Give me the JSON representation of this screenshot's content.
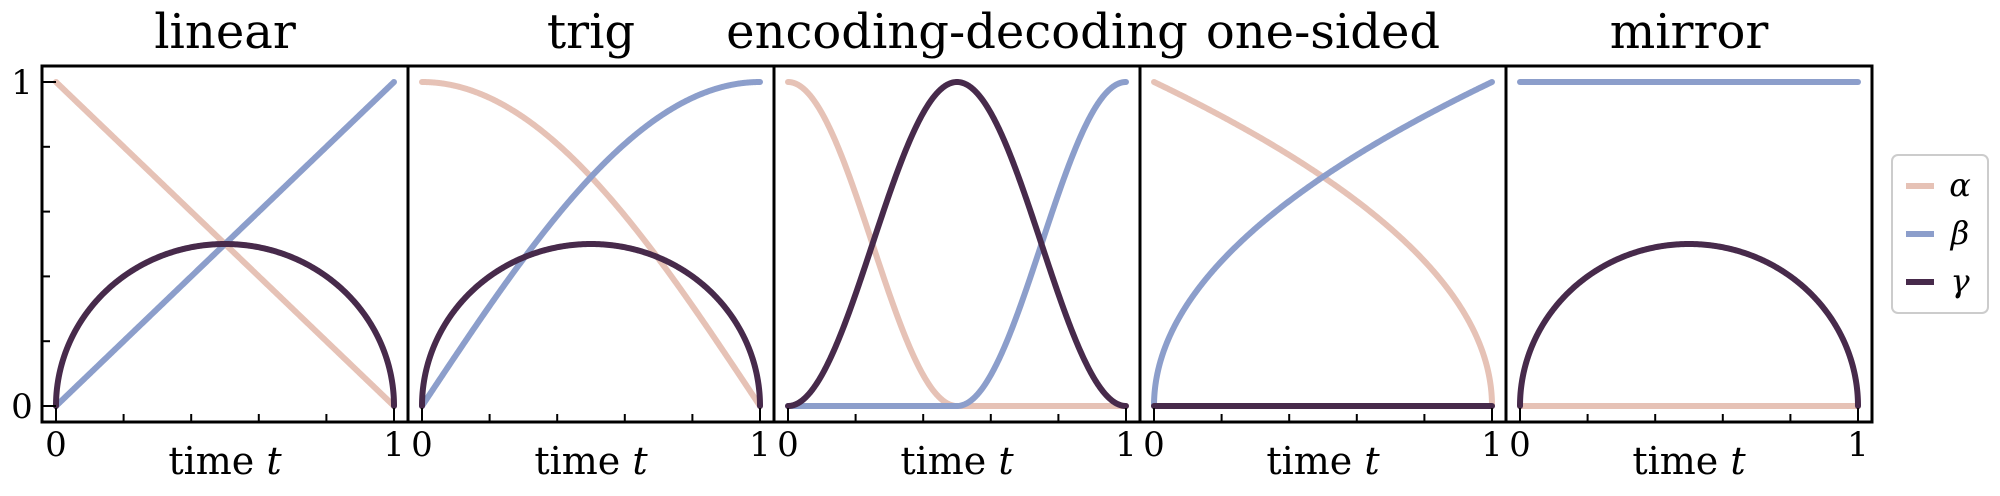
{
  "chart_data": {
    "type": "line",
    "layout": "5 panels side by side with shared legend",
    "x_range": [
      0,
      1
    ],
    "y_range": [
      0,
      1
    ],
    "x_ticks": [
      "0",
      "1"
    ],
    "y_ticks": [
      "0",
      "1"
    ],
    "xlabel_text": "time ",
    "xlabel_var": "t",
    "grid": false,
    "legend": {
      "position": "right",
      "entries": [
        {
          "key": "alpha",
          "label": "α",
          "color": "#e6c2b6"
        },
        {
          "key": "beta",
          "label": "β",
          "color": "#8c9ecb"
        },
        {
          "key": "gamma",
          "label": "γ",
          "color": "#472a4b"
        }
      ]
    },
    "panels": [
      {
        "title": "linear",
        "series": {
          "alpha": {
            "formula": "alpha(t) = 1 - t",
            "x": [
              0,
              0.25,
              0.5,
              0.75,
              1
            ],
            "y": [
              1,
              0.75,
              0.5,
              0.25,
              0
            ]
          },
          "beta": {
            "formula": "beta(t) = t",
            "x": [
              0,
              0.25,
              0.5,
              0.75,
              1
            ],
            "y": [
              0,
              0.25,
              0.5,
              0.75,
              1
            ]
          },
          "gamma": {
            "formula": "gamma(t) = sqrt(t(1-t))",
            "x": [
              0,
              0.05,
              0.25,
              0.5,
              0.75,
              0.95,
              1
            ],
            "y": [
              0,
              0.218,
              0.433,
              0.5,
              0.433,
              0.218,
              0
            ]
          }
        }
      },
      {
        "title": "trig",
        "series": {
          "alpha": {
            "formula": "alpha(t) = cos(pi t / 2)",
            "x": [
              0,
              0.25,
              0.5,
              0.75,
              1
            ],
            "y": [
              1,
              0.924,
              0.707,
              0.383,
              0
            ]
          },
          "beta": {
            "formula": "beta(t) = sin(pi t / 2)",
            "x": [
              0,
              0.25,
              0.5,
              0.75,
              1
            ],
            "y": [
              0,
              0.383,
              0.707,
              0.924,
              1
            ]
          },
          "gamma": {
            "formula": "gamma(t) = sqrt(t(1-t))",
            "x": [
              0,
              0.05,
              0.25,
              0.5,
              0.75,
              0.95,
              1
            ],
            "y": [
              0,
              0.218,
              0.433,
              0.5,
              0.433,
              0.218,
              0
            ]
          }
        }
      },
      {
        "title": "encoding-decoding",
        "series": {
          "alpha": {
            "formula": "alpha(t) = cos^2(pi t) for t < 1/2, else 0",
            "x": [
              0,
              0.125,
              0.25,
              0.375,
              0.5,
              0.75,
              1
            ],
            "y": [
              1,
              0.854,
              0.5,
              0.146,
              0,
              0,
              0
            ]
          },
          "beta": {
            "formula": "beta(t) = cos^2(pi t) for t > 1/2, else 0",
            "x": [
              0,
              0.25,
              0.5,
              0.625,
              0.75,
              0.875,
              1
            ],
            "y": [
              0,
              0,
              0,
              0.146,
              0.5,
              0.854,
              1
            ]
          },
          "gamma": {
            "formula": "gamma(t) = sin^2(pi t)",
            "x": [
              0,
              0.125,
              0.25,
              0.375,
              0.5,
              0.625,
              0.75,
              0.875,
              1
            ],
            "y": [
              0,
              0.146,
              0.5,
              0.854,
              1,
              0.854,
              0.5,
              0.146,
              0
            ]
          }
        }
      },
      {
        "title": "one-sided",
        "series": {
          "alpha": {
            "formula": "alpha(t) = sqrt(1 - t)",
            "x": [
              0,
              0.25,
              0.5,
              0.75,
              1
            ],
            "y": [
              1,
              0.866,
              0.707,
              0.5,
              0
            ]
          },
          "beta": {
            "formula": "beta(t) = sqrt(t)",
            "x": [
              0,
              0.25,
              0.5,
              0.75,
              1
            ],
            "y": [
              0,
              0.5,
              0.707,
              0.866,
              1
            ]
          },
          "gamma": {
            "formula": "gamma(t) = 0",
            "x": [
              0,
              1
            ],
            "y": [
              0,
              0
            ]
          }
        }
      },
      {
        "title": "mirror",
        "series": {
          "alpha": {
            "formula": "alpha(t) = 0",
            "x": [
              0,
              1
            ],
            "y": [
              0,
              0
            ]
          },
          "beta": {
            "formula": "beta(t) = 1",
            "x": [
              0,
              1
            ],
            "y": [
              1,
              1
            ]
          },
          "gamma": {
            "formula": "gamma(t) = sqrt(t(1-t))",
            "x": [
              0,
              0.05,
              0.25,
              0.5,
              0.75,
              0.95,
              1
            ],
            "y": [
              0,
              0.218,
              0.433,
              0.5,
              0.433,
              0.218,
              0
            ]
          }
        }
      }
    ]
  }
}
